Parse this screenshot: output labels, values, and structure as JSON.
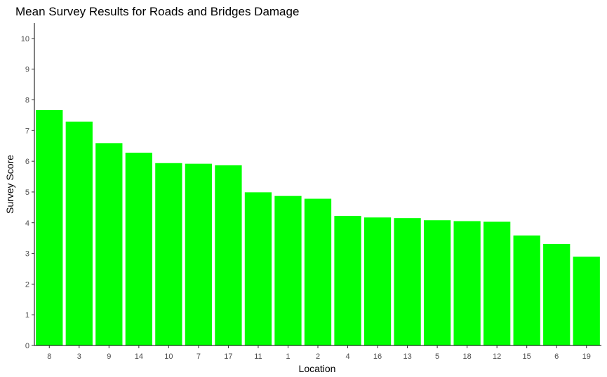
{
  "chart_data": {
    "type": "bar",
    "title": "Mean Survey Results for Roads and Bridges Damage",
    "xlabel": "Location",
    "ylabel": "Survey Score",
    "categories": [
      "8",
      "3",
      "9",
      "14",
      "10",
      "7",
      "17",
      "11",
      "1",
      "2",
      "4",
      "16",
      "13",
      "5",
      "18",
      "12",
      "15",
      "6",
      "19"
    ],
    "values": [
      7.67,
      7.29,
      6.59,
      6.28,
      5.94,
      5.92,
      5.87,
      4.99,
      4.87,
      4.78,
      4.22,
      4.17,
      4.15,
      4.08,
      4.05,
      4.03,
      3.58,
      3.31,
      2.89
    ],
    "ylim": [
      0,
      10.5
    ],
    "yticks": [
      0,
      1,
      2,
      3,
      4,
      5,
      6,
      7,
      8,
      9,
      10
    ],
    "bar_color": "#00ff00",
    "grid": false,
    "legend": "none"
  }
}
